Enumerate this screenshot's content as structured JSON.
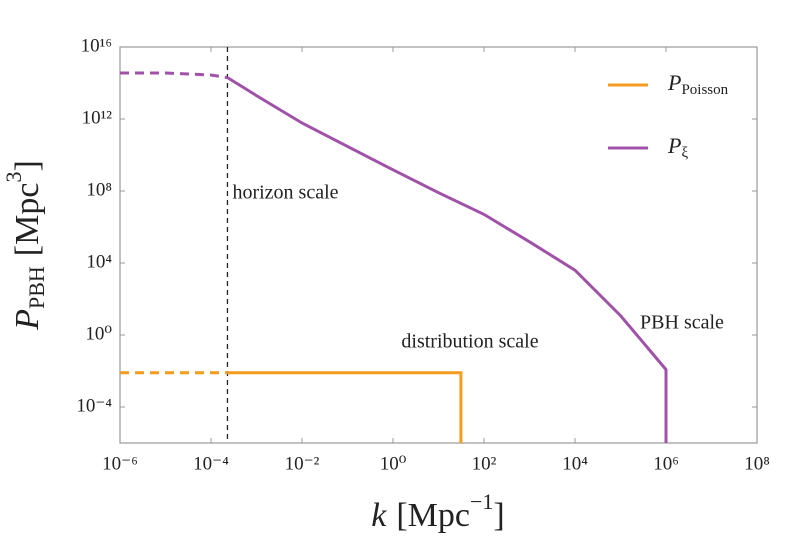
{
  "chart_data": {
    "type": "line",
    "xlabel": {
      "symbol": "k",
      "unit": "[Mpc",
      "sup": "−1",
      "close": "]"
    },
    "ylabel": {
      "symbol": "P",
      "sub": "PBH",
      "unit": "[Mpc",
      "sup": "3",
      "close": "]"
    },
    "log_x": true,
    "log_y": true,
    "xlim": [
      1e-06,
      100000000.0
    ],
    "ylim": [
      1e-06,
      1e+16
    ],
    "xticks": [
      {
        "value": 1e-06,
        "label": "10⁻⁶"
      },
      {
        "value": 0.0001,
        "label": "10⁻⁴"
      },
      {
        "value": 0.01,
        "label": "10⁻²"
      },
      {
        "value": 1,
        "label": "10⁰"
      },
      {
        "value": 100,
        "label": "10²"
      },
      {
        "value": 10000.0,
        "label": "10⁴"
      },
      {
        "value": 1000000.0,
        "label": "10⁶"
      },
      {
        "value": 100000000.0,
        "label": "10⁸"
      }
    ],
    "yticks": [
      {
        "value": 1e+16,
        "label": "10¹⁶"
      },
      {
        "value": 1000000000000.0,
        "label": "10¹²"
      },
      {
        "value": 100000000.0,
        "label": "10⁸"
      },
      {
        "value": 10000.0,
        "label": "10⁴"
      },
      {
        "value": 1,
        "label": "10⁰"
      },
      {
        "value": 0.0001,
        "label": "10⁻⁴"
      }
    ],
    "vline": {
      "x": 0.00023,
      "label": "horizon scale"
    },
    "annotations": [
      "distribution scale",
      "PBH scale"
    ],
    "legend": "upper right",
    "series": [
      {
        "name": "P",
        "subscript": "Poisson",
        "color": "#f39c1f",
        "x": [
          1e-06,
          0.00023,
          31,
          31
        ],
        "values": [
          0.008,
          0.008,
          0.008,
          1e-06
        ]
      },
      {
        "name": "P",
        "subscript": "ξ",
        "color": "#a052a8",
        "x": [
          1e-06,
          1e-05,
          0.0001,
          0.00023,
          0.001,
          0.01,
          0.1,
          1,
          10,
          100,
          1000,
          10000.0,
          100000.0,
          1000000.0,
          1000000.0
        ],
        "values": [
          360000000000000.0,
          360000000000000.0,
          280000000000000.0,
          200000000000000.0,
          20000000000000.0,
          600000000000.0,
          30000000000.0,
          1500000000.0,
          80000000.0,
          5000000.0,
          150000.0,
          4000,
          12,
          0.012,
          1e-06
        ]
      }
    ]
  }
}
